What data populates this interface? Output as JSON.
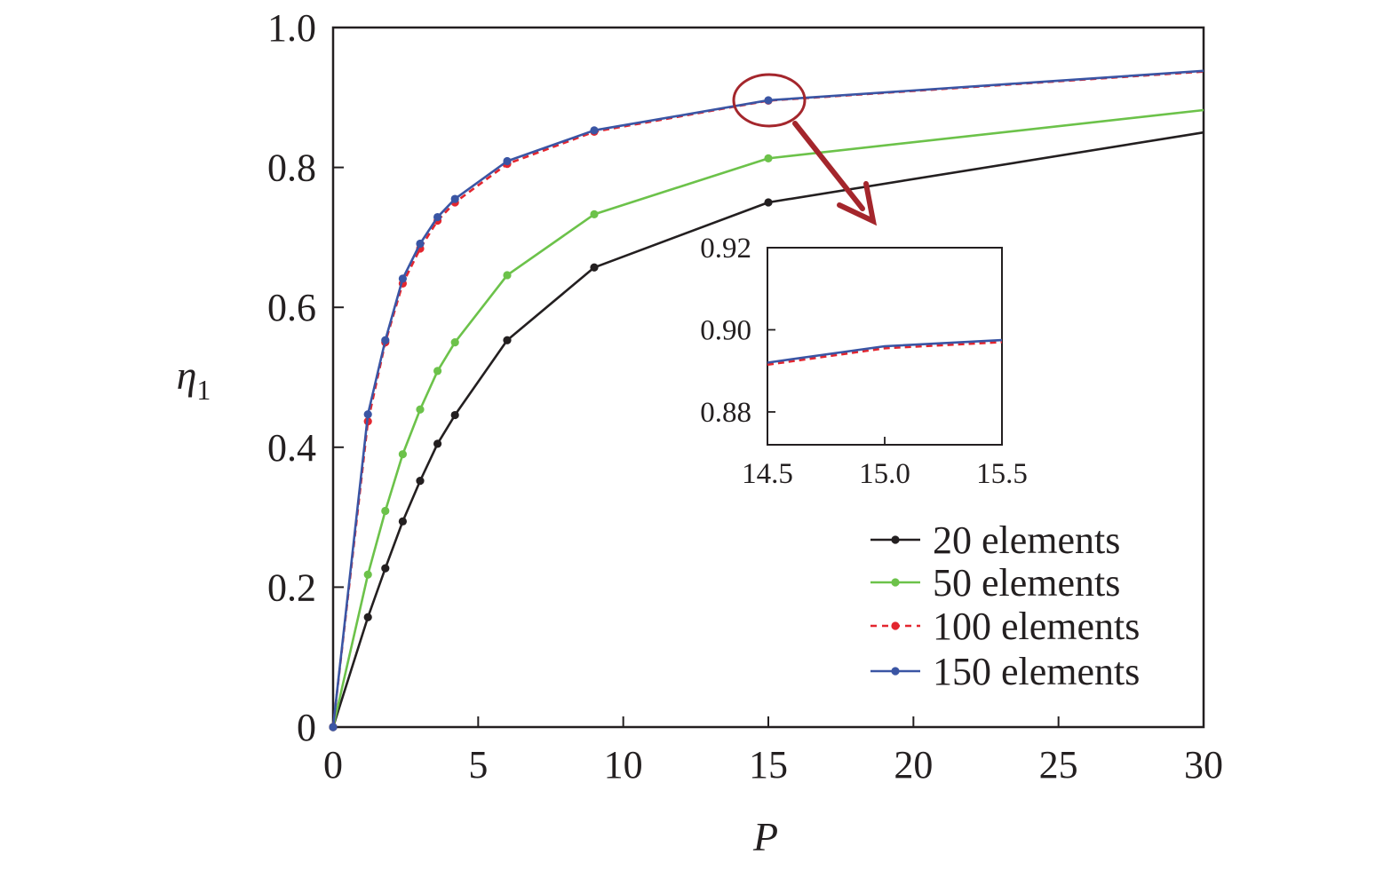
{
  "chart_data": {
    "type": "line",
    "xlabel": "P",
    "ylabel": "η",
    "ylabel_subscript": "1",
    "xlim": [
      0,
      30
    ],
    "ylim": [
      0,
      1.0
    ],
    "xticks": [
      "0",
      "5",
      "10",
      "15",
      "20",
      "25",
      "30"
    ],
    "yticks": [
      "0",
      "0.2",
      "0.4",
      "0.6",
      "0.8",
      "1.0"
    ],
    "grid": false,
    "legend_position": "bottom-right",
    "series": [
      {
        "name": "20 elements",
        "color": "#231f20",
        "style": "solid",
        "x": [
          0,
          1.2,
          1.8,
          2.4,
          3.0,
          3.6,
          4.2,
          6.0,
          9.0,
          15.0,
          30.0
        ],
        "y": [
          0,
          0.157,
          0.227,
          0.294,
          0.352,
          0.405,
          0.446,
          0.553,
          0.657,
          0.75,
          0.85
        ]
      },
      {
        "name": "50 elements",
        "color": "#6cc24a",
        "style": "solid",
        "x": [
          0,
          1.2,
          1.8,
          2.4,
          3.0,
          3.6,
          4.2,
          6.0,
          9.0,
          15.0,
          30.0
        ],
        "y": [
          0,
          0.218,
          0.309,
          0.39,
          0.454,
          0.509,
          0.55,
          0.646,
          0.733,
          0.813,
          0.882
        ]
      },
      {
        "name": "100 elements",
        "color": "#e3262f",
        "style": "dashed",
        "x": [
          0,
          1.2,
          1.8,
          2.4,
          3.0,
          3.6,
          4.2,
          6.0,
          9.0,
          15.0,
          30.0
        ],
        "y": [
          0,
          0.437,
          0.55,
          0.634,
          0.684,
          0.724,
          0.75,
          0.805,
          0.851,
          0.8955,
          0.937
        ]
      },
      {
        "name": "150 elements",
        "color": "#3a55a4",
        "style": "solid",
        "x": [
          0,
          1.2,
          1.8,
          2.4,
          3.0,
          3.6,
          4.2,
          6.0,
          9.0,
          15.0,
          30.0
        ],
        "y": [
          0,
          0.447,
          0.553,
          0.641,
          0.691,
          0.729,
          0.755,
          0.809,
          0.853,
          0.896,
          0.938
        ]
      }
    ],
    "inset": {
      "xlim": [
        14.5,
        15.5
      ],
      "ylim": [
        0.872,
        0.92
      ],
      "xticks": [
        "14.5",
        "15.0",
        "15.5"
      ],
      "yticks": [
        "0.88",
        "0.90",
        "0.92"
      ],
      "series": [
        {
          "name": "100 elements",
          "x": [
            14.5,
            15.0,
            15.5
          ],
          "y": [
            0.8915,
            0.8955,
            0.897
          ]
        },
        {
          "name": "150 elements",
          "x": [
            14.5,
            15.0,
            15.5
          ],
          "y": [
            0.892,
            0.896,
            0.8975
          ]
        }
      ]
    },
    "annotation": {
      "type": "zoom-callout",
      "circle_center": [
        15.0,
        0.896
      ],
      "circle_color": "#a4262c",
      "arrow_color": "#a4262c"
    }
  }
}
